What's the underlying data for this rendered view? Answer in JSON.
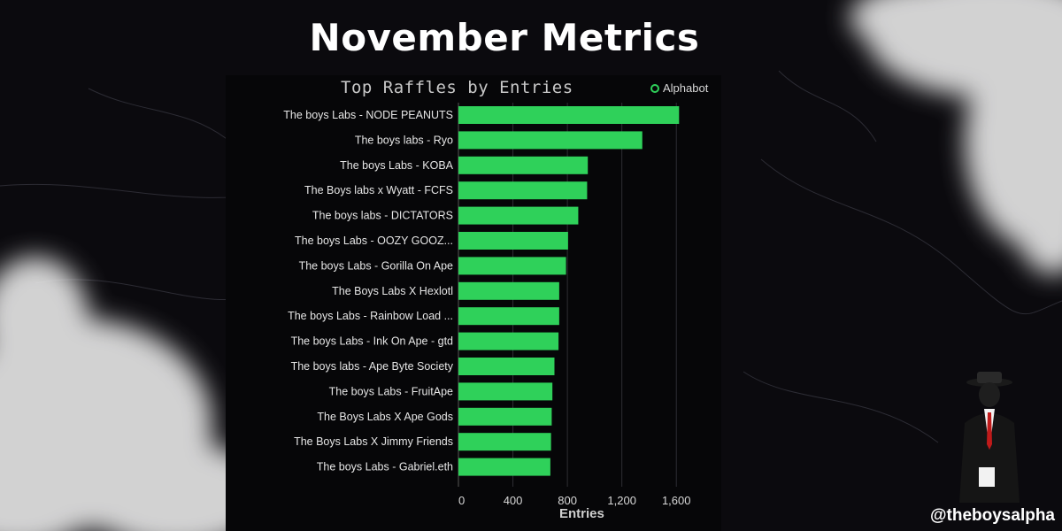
{
  "page": {
    "title": "November Metrics",
    "handle": "@theboysalpha"
  },
  "brand": {
    "label": "Alphabot",
    "icon": "alphabot-logo-icon",
    "accent_color": "#2fd15a"
  },
  "colors": {
    "bar": "#2fd15a",
    "background": "#0b0a0e"
  },
  "chart_data": {
    "type": "bar",
    "orientation": "horizontal",
    "title": "Top Raffles by Entries",
    "xlabel": "Entries",
    "ylabel": "",
    "xlim": [
      0,
      1800
    ],
    "xticks": [
      0,
      400,
      800,
      1200,
      1600
    ],
    "xtick_labels": [
      "0",
      "400",
      "800",
      "1,200",
      "1,600"
    ],
    "grid": true,
    "categories": [
      "The boys Labs - NODE PEANUTS",
      "The boys labs - Ryo",
      "The boys Labs - KOBA",
      "The Boys labs x Wyatt - FCFS",
      "The boys labs - DICTATORS",
      "The boys Labs - OOZY GOOZ...",
      "The boys Labs - Gorilla On Ape",
      "The Boys Labs X Hexlotl",
      "The boys Labs - Rainbow Load ...",
      "The boys Labs - Ink On Ape - gtd",
      "The boys labs - Ape Byte Society",
      "The boys Labs - FruitApe",
      "The Boys Labs X Ape Gods",
      "The Boys Labs  X Jimmy Friends",
      "The boys Labs - Gabriel.eth"
    ],
    "values": [
      1620,
      1350,
      950,
      945,
      880,
      805,
      790,
      740,
      740,
      735,
      705,
      690,
      685,
      680,
      675
    ]
  }
}
